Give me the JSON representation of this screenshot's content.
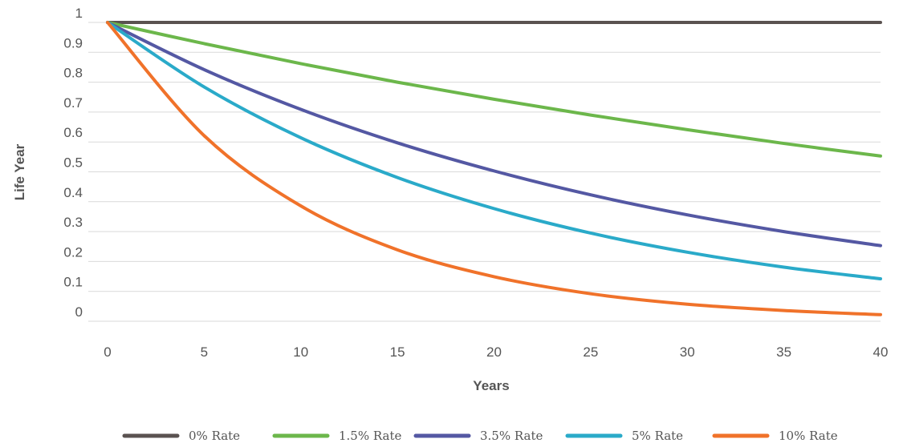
{
  "chart_data": {
    "type": "line",
    "title": "",
    "xlabel": "Years",
    "ylabel": "Life Year",
    "xlim": [
      0,
      40
    ],
    "ylim": [
      0,
      1
    ],
    "x_ticks": [
      0,
      5,
      10,
      15,
      20,
      25,
      30,
      35,
      40
    ],
    "y_ticks": [
      0,
      0.1,
      0.2,
      0.3,
      0.4,
      0.5,
      0.6,
      0.7,
      0.8,
      0.9,
      1
    ],
    "y_tick_labels": [
      "0",
      "0.1",
      "0.2",
      "0.3",
      "0.4",
      "0.5",
      "0.6",
      "0.7",
      "0.8",
      "0.9",
      "1"
    ],
    "x": [
      0,
      5,
      10,
      15,
      20,
      25,
      30,
      35,
      40
    ],
    "grid": "horizontal",
    "legend_position": "bottom",
    "series": [
      {
        "name": "0% Rate",
        "color": "#5a5250",
        "values": [
          1,
          1,
          1,
          1,
          1,
          1,
          1,
          1,
          1
        ]
      },
      {
        "name": "1.5% Rate",
        "color": "#6cb74b",
        "values": [
          1,
          0.929,
          0.862,
          0.8,
          0.743,
          0.69,
          0.641,
          0.595,
          0.553
        ]
      },
      {
        "name": "3.5% Rate",
        "color": "#5458a3",
        "values": [
          1,
          0.842,
          0.709,
          0.597,
          0.503,
          0.423,
          0.356,
          0.3,
          0.253
        ]
      },
      {
        "name": "5% Rate",
        "color": "#2aaac9",
        "values": [
          1,
          0.784,
          0.614,
          0.481,
          0.377,
          0.295,
          0.231,
          0.181,
          0.142
        ]
      },
      {
        "name": "10% Rate",
        "color": "#f0722a",
        "values": [
          1,
          0.621,
          0.386,
          0.239,
          0.149,
          0.092,
          0.057,
          0.036,
          0.022
        ]
      }
    ]
  }
}
